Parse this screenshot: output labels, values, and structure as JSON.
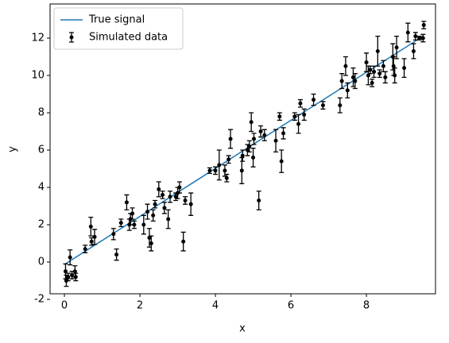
{
  "chart_data": {
    "type": "line",
    "xlabel": "x",
    "ylabel": "y",
    "xlim": [
      -0.38,
      9.83
    ],
    "ylim": [
      -1.7,
      13.83
    ],
    "xticks": [
      0,
      2,
      4,
      6,
      8
    ],
    "yticks": [
      -2,
      0,
      2,
      4,
      6,
      8,
      10,
      12
    ],
    "legend": "upper left",
    "series": [
      {
        "name": "True signal",
        "type": "line",
        "color": "#1f77b4",
        "x": [
          0,
          9.5
        ],
        "y": [
          -0.13,
          12.1
        ]
      },
      {
        "name": "Simulated data",
        "type": "errorbar",
        "color": "#000000",
        "x": [
          0.03,
          0.05,
          0.1,
          0.15,
          0.2,
          0.28,
          0.3,
          0.55,
          0.7,
          0.72,
          0.8,
          1.3,
          1.38,
          1.5,
          1.65,
          1.72,
          1.75,
          1.8,
          1.85,
          2.1,
          2.2,
          2.25,
          2.3,
          2.35,
          2.4,
          2.5,
          2.6,
          2.65,
          2.75,
          2.8,
          2.95,
          3.0,
          3.05,
          3.15,
          3.2,
          3.35,
          3.85,
          4.0,
          4.1,
          4.25,
          4.3,
          4.35,
          4.4,
          4.7,
          4.72,
          4.85,
          4.9,
          4.95,
          5.0,
          5.02,
          5.15,
          5.2,
          5.3,
          5.6,
          5.7,
          5.75,
          5.8,
          6.1,
          6.2,
          6.25,
          6.35,
          6.6,
          6.85,
          7.3,
          7.35,
          7.45,
          7.5,
          7.65,
          7.7,
          8.0,
          8.05,
          8.1,
          8.15,
          8.2,
          8.3,
          8.35,
          8.45,
          8.5,
          8.7,
          8.72,
          8.75,
          8.8,
          9.0,
          9.1,
          9.25,
          9.3,
          9.4,
          9.5,
          9.52
        ],
        "y": [
          -0.5,
          -1.0,
          -0.8,
          0.25,
          -0.7,
          -0.5,
          -0.8,
          0.7,
          1.9,
          1.1,
          1.35,
          1.5,
          0.4,
          2.1,
          3.2,
          2.0,
          2.3,
          2.6,
          2.0,
          2.0,
          2.7,
          1.3,
          1.0,
          2.5,
          3.1,
          3.9,
          3.6,
          2.9,
          2.3,
          3.5,
          3.5,
          3.7,
          4.0,
          1.1,
          3.3,
          3.1,
          4.9,
          4.9,
          5.2,
          4.9,
          4.5,
          5.5,
          6.6,
          4.9,
          5.7,
          6.0,
          6.2,
          7.5,
          5.6,
          6.6,
          3.3,
          7.0,
          6.8,
          6.5,
          7.8,
          5.4,
          6.9,
          7.8,
          7.4,
          8.5,
          7.9,
          8.7,
          8.4,
          8.4,
          9.7,
          10.5,
          9.2,
          9.9,
          9.7,
          10.7,
          10.0,
          10.3,
          9.6,
          10.2,
          11.3,
          10.1,
          10.5,
          9.9,
          11.0,
          10.5,
          10.0,
          11.5,
          10.4,
          12.3,
          11.3,
          12.1,
          12.0,
          12.0,
          12.7
        ],
        "yerr": [
          0.4,
          0.3,
          0.2,
          0.4,
          0.2,
          0.3,
          0.2,
          0.2,
          0.5,
          0.2,
          0.4,
          0.3,
          0.3,
          0.2,
          0.4,
          0.3,
          0.3,
          0.3,
          0.2,
          0.5,
          0.4,
          0.5,
          0.4,
          0.3,
          0.2,
          0.4,
          0.2,
          0.3,
          0.5,
          0.3,
          0.2,
          0.3,
          0.3,
          0.5,
          0.2,
          0.6,
          0.15,
          0.2,
          0.8,
          0.3,
          0.2,
          0.2,
          0.5,
          0.7,
          0.3,
          0.3,
          0.3,
          0.5,
          0.5,
          0.3,
          0.5,
          0.3,
          0.3,
          0.6,
          0.2,
          0.6,
          0.3,
          0.2,
          0.5,
          0.2,
          0.3,
          0.3,
          0.2,
          0.4,
          0.4,
          0.5,
          0.4,
          0.5,
          0.4,
          0.5,
          0.5,
          0.2,
          0.2,
          0.3,
          0.8,
          0.2,
          0.3,
          0.3,
          0.7,
          0.5,
          0.4,
          0.6,
          0.5,
          0.5,
          0.4,
          0.2,
          0.1,
          0.2,
          0.2
        ]
      }
    ]
  }
}
